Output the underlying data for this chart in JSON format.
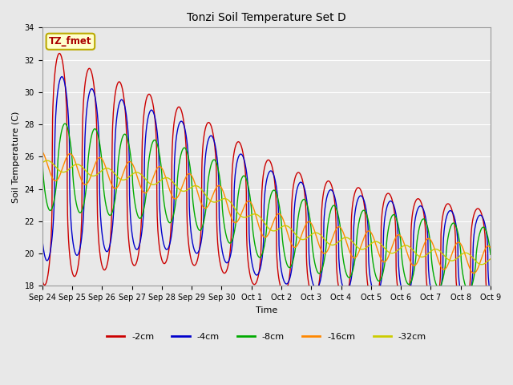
{
  "title": "Tonzi Soil Temperature Set D",
  "xlabel": "Time",
  "ylabel": "Soil Temperature (C)",
  "ylim": [
    18,
    34
  ],
  "xlim": [
    0,
    15
  ],
  "annotation_text": "TZ_fmet",
  "annotation_bg": "#ffffcc",
  "annotation_border": "#bbaa00",
  "fig_facecolor": "#e8e8e8",
  "ax_facecolor": "#e8e8e8",
  "line_colors": {
    "-2cm": "#cc0000",
    "-4cm": "#0000cc",
    "-8cm": "#00aa00",
    "-16cm": "#ff8800",
    "-32cm": "#cccc00"
  },
  "legend_labels": [
    "-2cm",
    "-4cm",
    "-8cm",
    "-16cm",
    "-32cm"
  ],
  "tick_labels": [
    "Sep 24",
    "Sep 25",
    "Sep 26",
    "Sep 27",
    "Sep 28",
    "Sep 29",
    "Sep 30",
    "Oct 1",
    "Oct 2",
    "Oct 3",
    "Oct 4",
    "Oct 5",
    "Oct 6",
    "Oct 7",
    "Oct 8",
    "Oct 9"
  ],
  "yticks": [
    18,
    20,
    22,
    24,
    26,
    28,
    30,
    32,
    34
  ],
  "grid_color": "#ffffff",
  "title_fontsize": 10,
  "label_fontsize": 8,
  "tick_fontsize": 7,
  "legend_fontsize": 8
}
